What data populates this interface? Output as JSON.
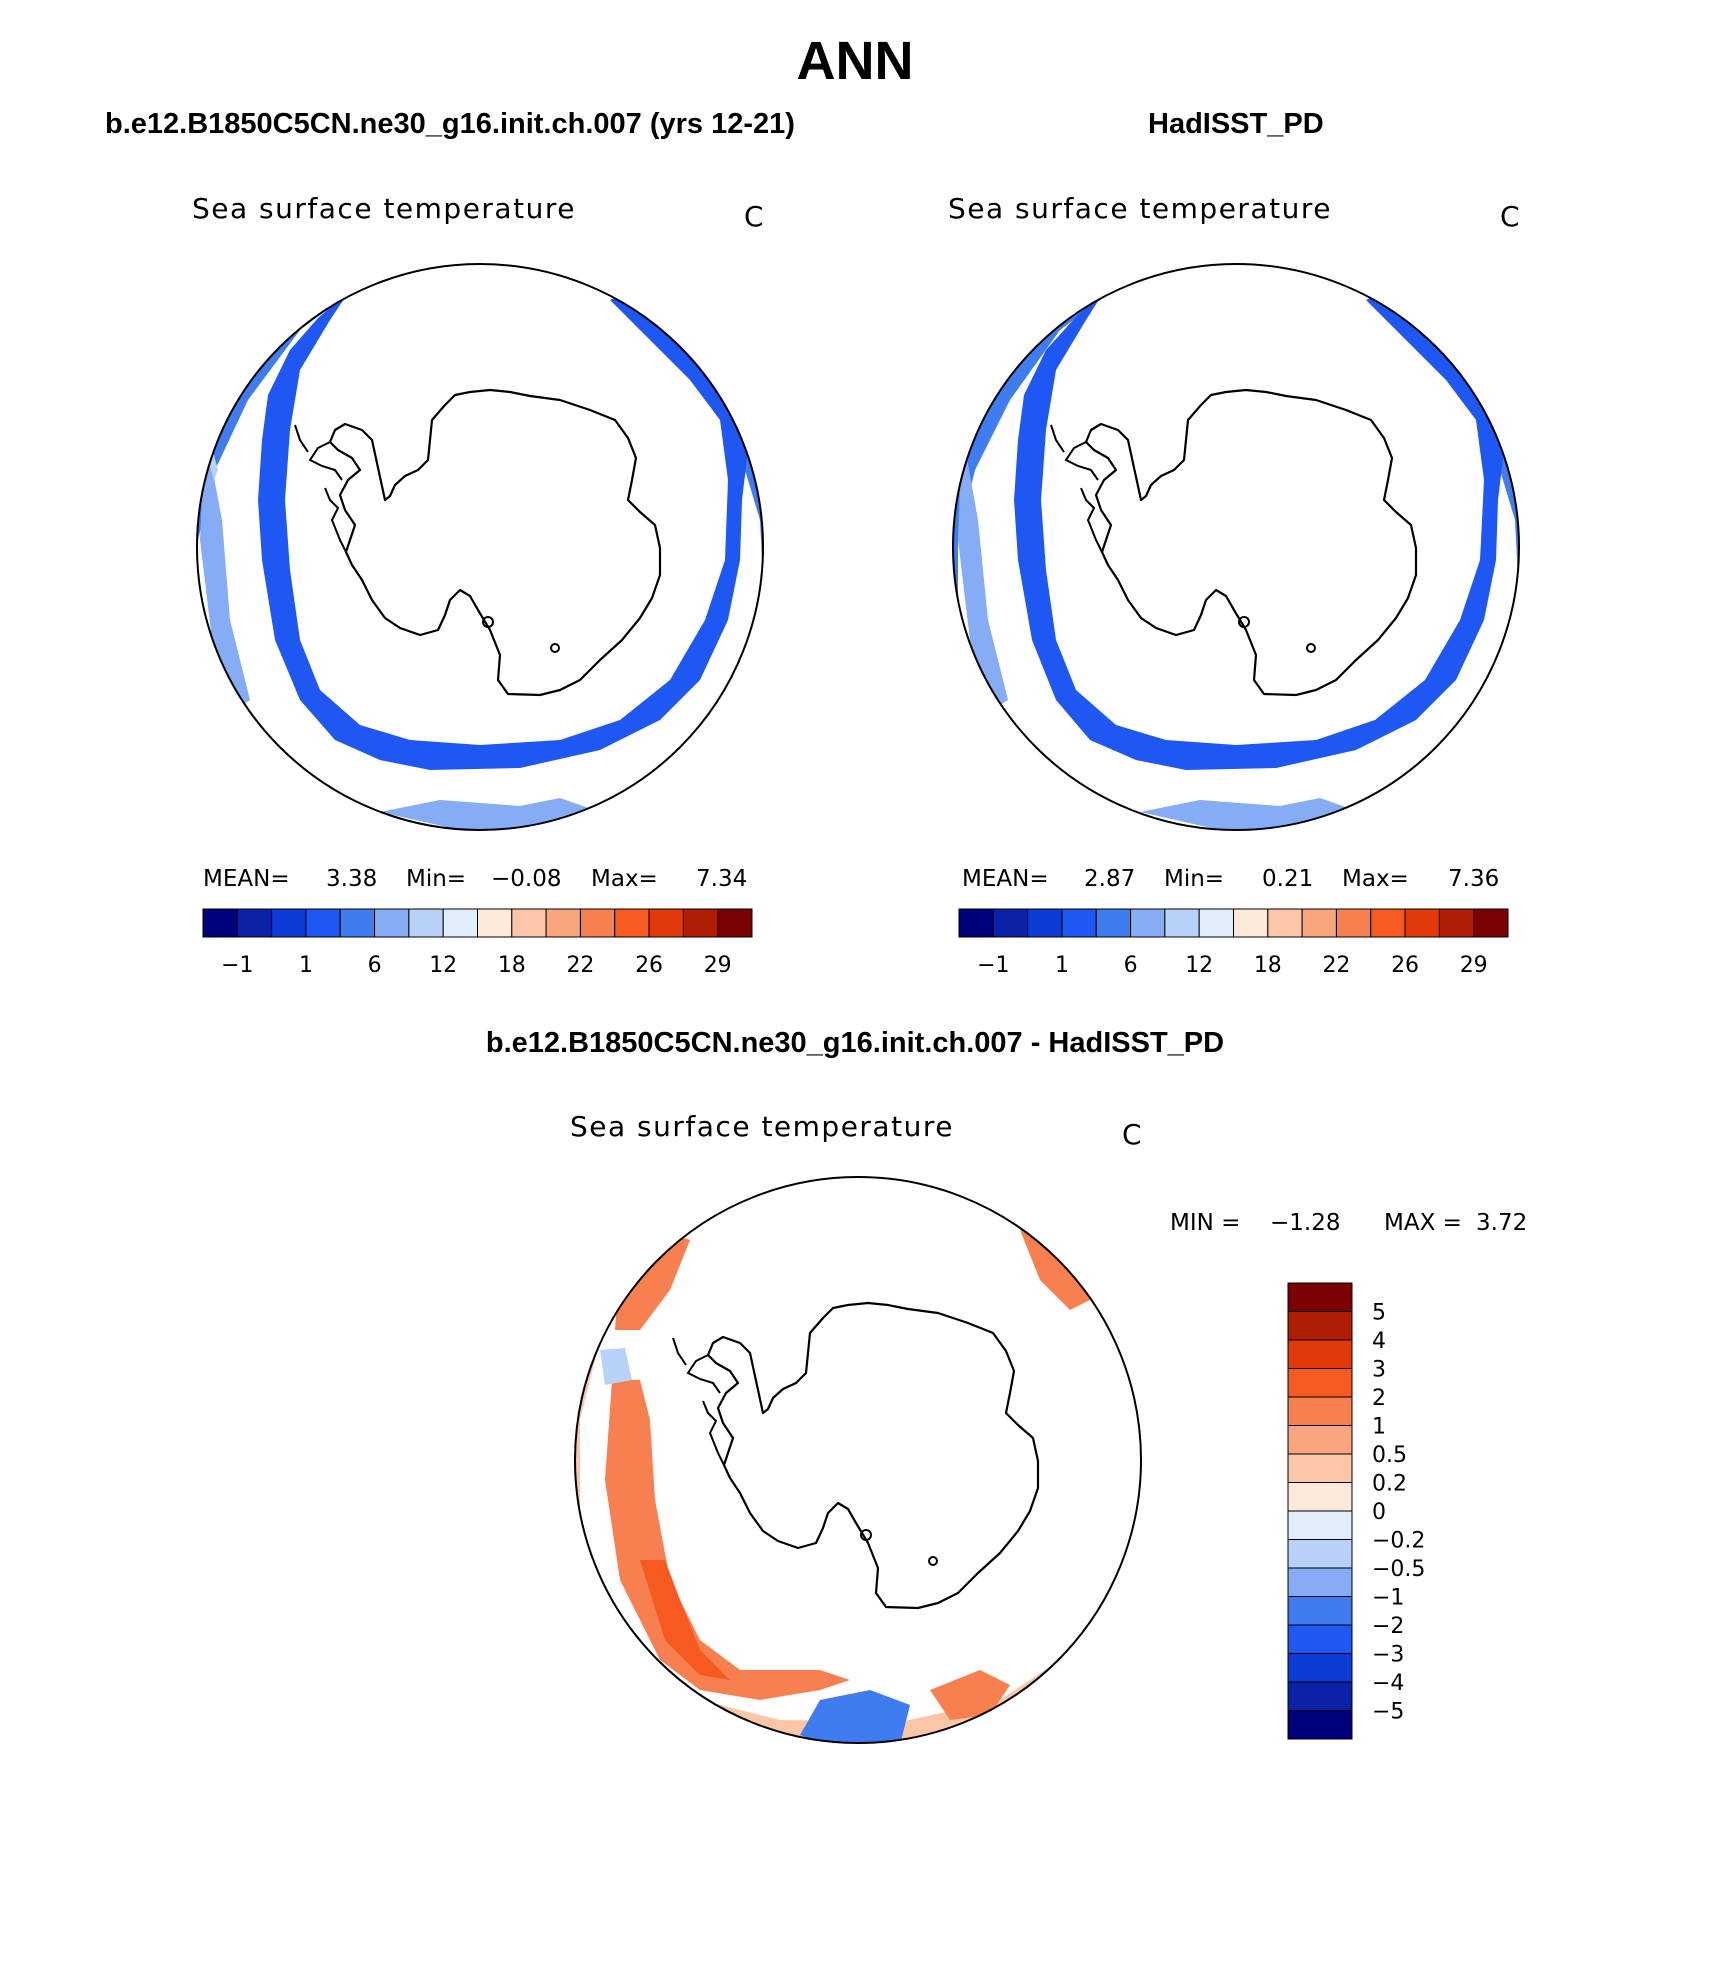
{
  "title": "ANN",
  "panels": {
    "model": {
      "title": "b.e12.B1850C5CN.ne30_g16.init.ch.007 (yrs 12-21)",
      "field_label": "Sea surface temperature",
      "units": "C",
      "stats": {
        "mean_label": "MEAN=",
        "mean": "3.38",
        "min_label": "Min=",
        "min": "−0.08",
        "max_label": "Max=",
        "max": "7.34"
      }
    },
    "obs": {
      "title": "HadISST_PD",
      "field_label": "Sea surface temperature",
      "units": "C",
      "stats": {
        "mean_label": "MEAN=",
        "mean": "2.87",
        "min_label": "Min=",
        "min": "0.21",
        "max_label": "Max=",
        "max": "7.36"
      }
    },
    "diff": {
      "title": "b.e12.B1850C5CN.ne30_g16.init.ch.007 - HadISST_PD",
      "field_label": "Sea surface temperature",
      "units": "C",
      "stats": {
        "min_label": "MIN =",
        "min": "−1.28",
        "max_label": "MAX =",
        "max": "3.72"
      }
    }
  },
  "chart_data": [
    {
      "type": "map",
      "projection": "south-polar stereographic",
      "title": "b.e12.B1850C5CN.ne30_g16.init.ch.007 (yrs 12-21)",
      "variable": "Sea surface temperature",
      "units": "C",
      "mean": 3.38,
      "min": -0.08,
      "max": 7.34,
      "colorbar": {
        "orientation": "horizontal",
        "colors": [
          "#00007a",
          "#0a22a5",
          "#0d3bd6",
          "#1f57f2",
          "#3f7cf0",
          "#85acf5",
          "#b8d1f8",
          "#e0eefc",
          "#fde9d9",
          "#fbc5a8",
          "#f9a57d",
          "#f88050",
          "#f75a20",
          "#e33a0c",
          "#b01d05",
          "#7a0202"
        ],
        "tick_labels": [
          "−1",
          "1",
          "6",
          "12",
          "18",
          "22",
          "26",
          "29"
        ]
      }
    },
    {
      "type": "map",
      "projection": "south-polar stereographic",
      "title": "HadISST_PD",
      "variable": "Sea surface temperature",
      "units": "C",
      "mean": 2.87,
      "min": 0.21,
      "max": 7.36,
      "colorbar": {
        "orientation": "horizontal",
        "colors": [
          "#00007a",
          "#0a22a5",
          "#0d3bd6",
          "#1f57f2",
          "#3f7cf0",
          "#85acf5",
          "#b8d1f8",
          "#e0eefc",
          "#fde9d9",
          "#fbc5a8",
          "#f9a57d",
          "#f88050",
          "#f75a20",
          "#e33a0c",
          "#b01d05",
          "#7a0202"
        ],
        "tick_labels": [
          "−1",
          "1",
          "6",
          "12",
          "18",
          "22",
          "26",
          "29"
        ]
      }
    },
    {
      "type": "map",
      "projection": "south-polar stereographic",
      "title": "b.e12.B1850C5CN.ne30_g16.init.ch.007 - HadISST_PD",
      "variable": "Sea surface temperature",
      "units": "C",
      "min": -1.28,
      "max": 3.72,
      "colorbar": {
        "orientation": "vertical",
        "colors": [
          "#7a0202",
          "#b01d05",
          "#e33a0c",
          "#f75a20",
          "#f88050",
          "#f9a57d",
          "#fbc5a8",
          "#fde9d9",
          "#e0eefc",
          "#b8d1f8",
          "#85acf5",
          "#3f7cf0",
          "#1f57f2",
          "#0d3bd6",
          "#0a22a5",
          "#00007a"
        ],
        "tick_labels": [
          "5",
          "4",
          "3",
          "2",
          "1",
          "0.5",
          "0.2",
          "0",
          "−0.2",
          "−0.5",
          "−1",
          "−2",
          "−3",
          "−4",
          "−5"
        ]
      }
    }
  ]
}
